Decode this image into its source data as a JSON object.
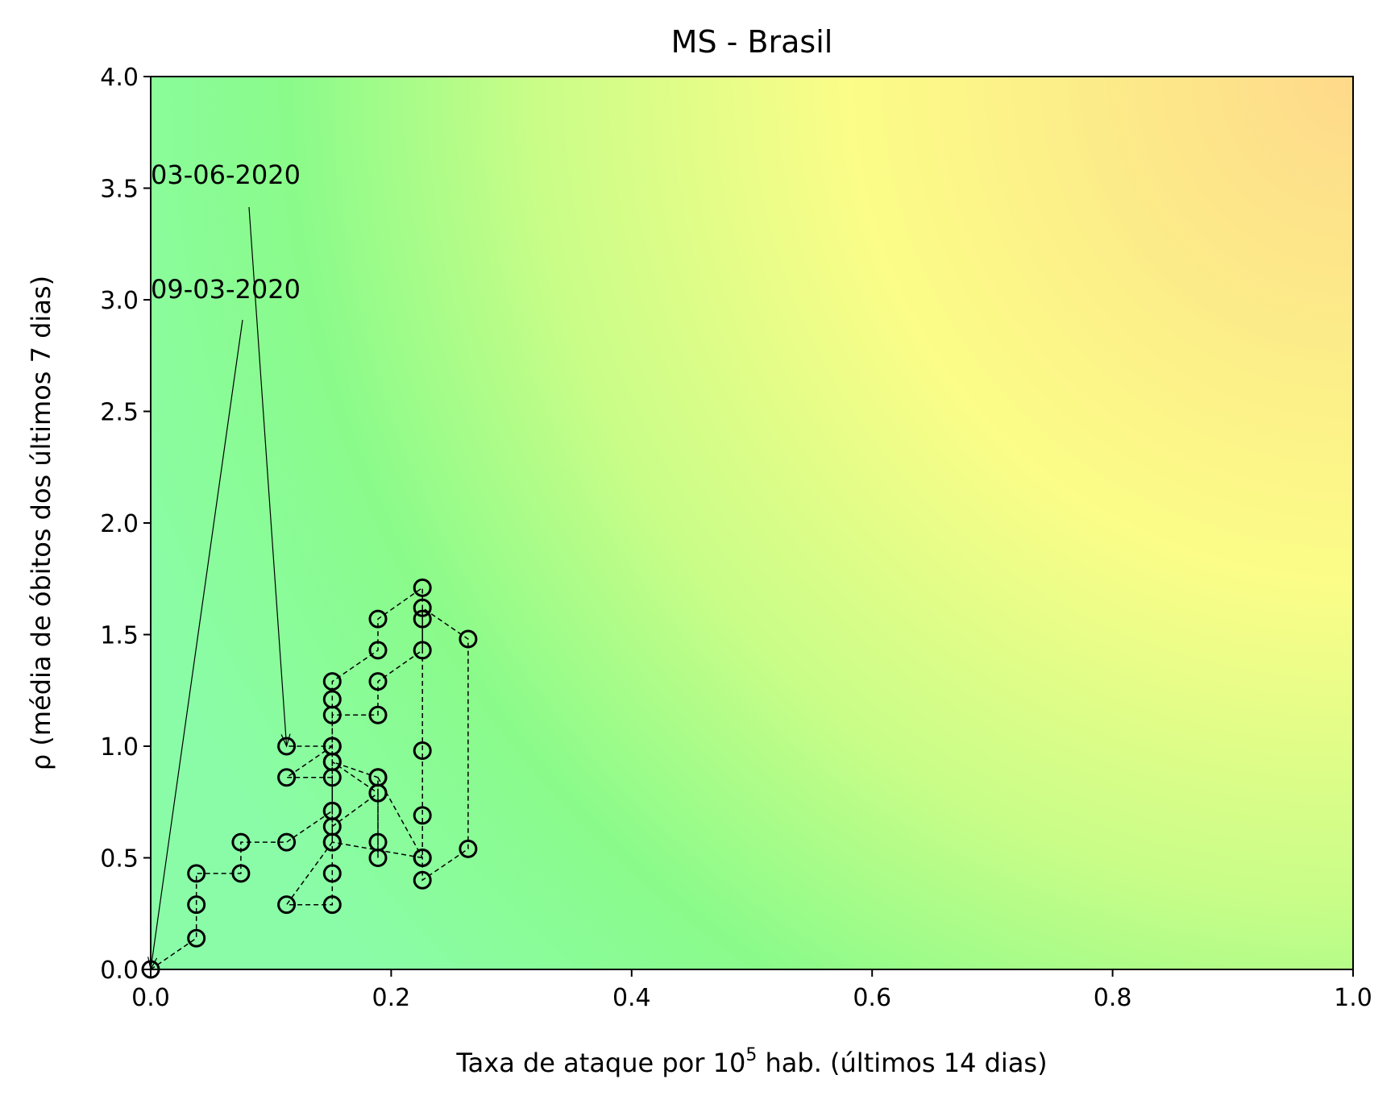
{
  "chart_data": {
    "type": "scatter",
    "title": "MS - Brasil",
    "xlabel_prefix": "Taxa de ataque por 10",
    "xlabel_sup": "5",
    "xlabel_suffix": " hab. (últimos 14 dias)",
    "ylabel": "ρ (média de óbitos dos últimos 7 dias)",
    "xlim": [
      0,
      1
    ],
    "ylim": [
      0,
      4
    ],
    "xticks": [
      "0.0",
      "0.2",
      "0.4",
      "0.6",
      "0.8",
      "1.0"
    ],
    "yticks": [
      "0.0",
      "0.5",
      "1.0",
      "1.5",
      "2.0",
      "2.5",
      "3.0",
      "3.5",
      "4.0"
    ],
    "background": "green-yellow-orange risk gradient",
    "colors": {
      "low": "#8afca0",
      "mid": "#fbfd88",
      "high": "#fed98a"
    },
    "annotations": [
      {
        "text": "09-03-2020",
        "points_to": [
          0.0,
          0.0
        ]
      },
      {
        "text": "03-06-2020",
        "points_to": [
          0.113,
          1.0
        ]
      }
    ],
    "series": [
      {
        "x": [
          0.0,
          0.038,
          0.038,
          0.038,
          0.075,
          0.075,
          0.113,
          0.151,
          0.151,
          0.113,
          0.151,
          0.151,
          0.189,
          0.189,
          0.226,
          0.226,
          0.226,
          0.189,
          0.189,
          0.151,
          0.151,
          0.151,
          0.189,
          0.189,
          0.189,
          0.189,
          0.151,
          0.151,
          0.113,
          0.151,
          0.151,
          0.151,
          0.189,
          0.189,
          0.226,
          0.226,
          0.264,
          0.264,
          0.226,
          0.226,
          0.226,
          0.226,
          0.151,
          0.151,
          0.151,
          0.113
        ],
        "y": [
          0.0,
          0.14,
          0.29,
          0.43,
          0.43,
          0.57,
          0.57,
          0.71,
          0.86,
          0.86,
          1.0,
          1.14,
          1.14,
          1.29,
          1.43,
          1.57,
          1.71,
          1.57,
          1.43,
          1.29,
          1.21,
          0.93,
          0.79,
          0.57,
          0.5,
          0.86,
          0.93,
          0.57,
          0.29,
          0.29,
          0.43,
          0.64,
          0.79,
          0.86,
          0.5,
          0.4,
          0.54,
          1.48,
          1.62,
          0.98,
          0.69,
          0.5,
          0.57,
          0.71,
          1.0,
          1.0
        ]
      }
    ]
  }
}
